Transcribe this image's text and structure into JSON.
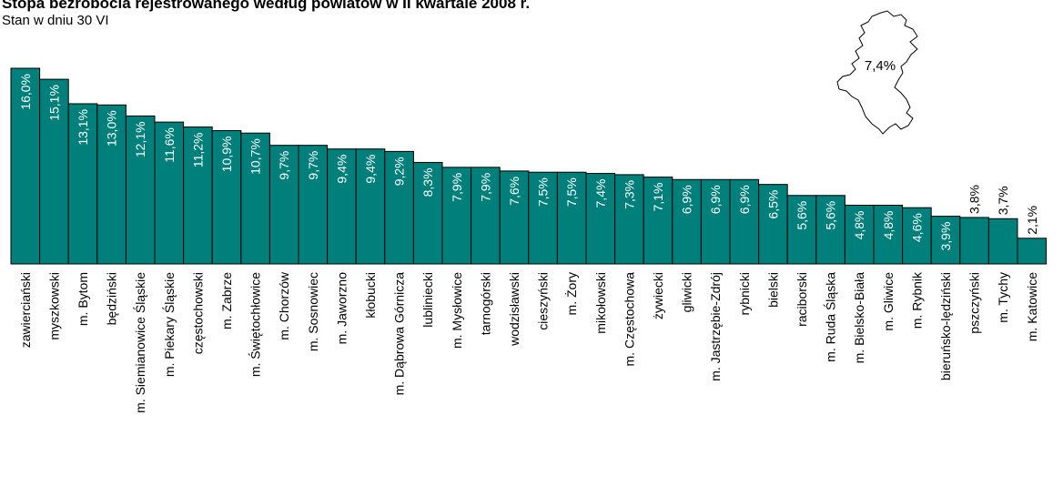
{
  "title": "Stopa bezrobocia rejestrowanego według powiatów w II kwartale 2008 r.",
  "subtitle": "Stan w dniu 30 VI",
  "inset": {
    "label": "7,4%",
    "value": 7.4
  },
  "colors": {
    "bar": "#007f7b",
    "bar_border": "#000000",
    "label_on_bar": "#ffffff",
    "label_off_bar": "#000000"
  },
  "chart_data": {
    "type": "bar",
    "title": "Stopa bezrobocia rejestrowanego według powiatów w II kwartale 2008 r.",
    "subtitle": "Stan w dniu 30 VI",
    "unit": "%",
    "categories": [
      "zawierciański",
      "myszkowski",
      "m. Bytom",
      "będziński",
      "m. Siemianowice Śląskie",
      "m. Piekary Śląskie",
      "częstochowski",
      "m. Zabrze",
      "m. Świętochłowice",
      "m. Chorzów",
      "m. Sosnowiec",
      "m. Jaworzno",
      "kłobucki",
      "m. Dąbrowa Górnicza",
      "lubliniecki",
      "m. Mysłowice",
      "tarnogórski",
      "wodzisławski",
      "cieszyński",
      "m. Żory",
      "mikołowski",
      "m. Częstochowa",
      "żywiecki",
      "gliwicki",
      "m. Jastrzębie-Zdrój",
      "rybnicki",
      "bielski",
      "raciborski",
      "m. Ruda Śląska",
      "m. Bielsko-Biała",
      "m. Gliwice",
      "m. Rybnik",
      "bieruńsko-lędziński",
      "pszczyński",
      "m. Tychy",
      "m. Katowice"
    ],
    "values": [
      16.0,
      15.1,
      13.1,
      13.0,
      12.1,
      11.6,
      11.2,
      10.9,
      10.7,
      9.7,
      9.7,
      9.4,
      9.4,
      9.2,
      8.3,
      7.9,
      7.9,
      7.6,
      7.5,
      7.5,
      7.4,
      7.3,
      7.1,
      6.9,
      6.9,
      6.9,
      6.5,
      5.6,
      5.6,
      4.8,
      4.8,
      4.6,
      3.9,
      3.8,
      3.7,
      2.1
    ],
    "labels": [
      "16,0%",
      "15,1%",
      "13,1%",
      "13,0%",
      "12,1%",
      "11,6%",
      "11,2%",
      "10,9%",
      "10,7%",
      "9,7%",
      "9,7%",
      "9,4%",
      "9,4%",
      "9,2%",
      "8,3%",
      "7,9%",
      "7,9%",
      "7,6%",
      "7,5%",
      "7,5%",
      "7,4%",
      "7,3%",
      "7,1%",
      "6,9%",
      "6,9%",
      "6,9%",
      "6,5%",
      "5,6%",
      "5,6%",
      "4,8%",
      "4,8%",
      "4,6%",
      "3,9%",
      "3,8%",
      "3,7%",
      "2,1%"
    ],
    "ylim": [
      0,
      16.0
    ],
    "grid": false,
    "legend": "none"
  }
}
